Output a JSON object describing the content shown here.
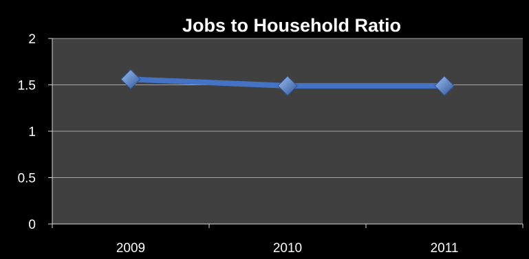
{
  "colors": {
    "background": "#000000",
    "plot_area": "#404040",
    "gridline": "#a6a6a6",
    "axis": "#d9d9d9",
    "text": "#ffffff",
    "series": "#4472c4"
  },
  "chart_data": {
    "type": "line",
    "title": "Jobs to Household Ratio",
    "xlabel": "",
    "ylabel": "",
    "categories": [
      "2009",
      "2010",
      "2011"
    ],
    "series": [
      {
        "values": [
          1.56,
          1.49,
          1.49
        ],
        "marker": "diamond"
      }
    ],
    "ylim": [
      0,
      2
    ],
    "yticks": [
      "0",
      "0.5",
      "1",
      "1.5",
      "2"
    ],
    "grid": true,
    "legend": "none"
  }
}
